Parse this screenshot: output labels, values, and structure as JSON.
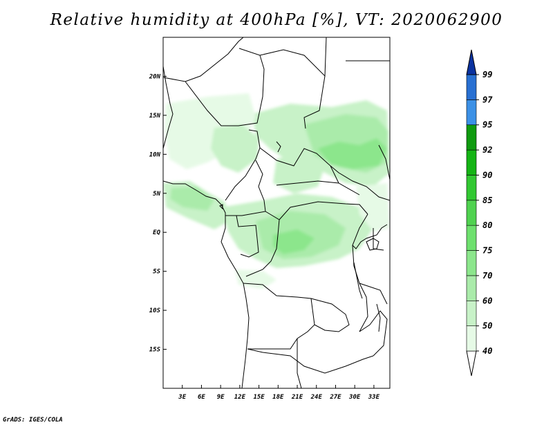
{
  "title": "Relative humidity at 400hPa [%], VT: 2020062900",
  "footer": "GrADS: IGES/COLA",
  "map": {
    "lon_range": [
      0,
      35.5
    ],
    "lat_range": [
      -20,
      25
    ],
    "lon_ticks": [
      {
        "value": 3,
        "label": "3E"
      },
      {
        "value": 6,
        "label": "6E"
      },
      {
        "value": 9,
        "label": "9E"
      },
      {
        "value": 12,
        "label": "12E"
      },
      {
        "value": 15,
        "label": "15E"
      },
      {
        "value": 18,
        "label": "18E"
      },
      {
        "value": 21,
        "label": "21E"
      },
      {
        "value": 24,
        "label": "24E"
      },
      {
        "value": 27,
        "label": "27E"
      },
      {
        "value": 30,
        "label": "30E"
      },
      {
        "value": 33,
        "label": "33E"
      }
    ],
    "lat_ticks": [
      {
        "value": 20,
        "label": "20N"
      },
      {
        "value": 15,
        "label": "15N"
      },
      {
        "value": 10,
        "label": "10N"
      },
      {
        "value": 5,
        "label": "5N"
      },
      {
        "value": 0,
        "label": "EQ"
      },
      {
        "value": -5,
        "label": "5S"
      },
      {
        "value": -10,
        "label": "10S"
      },
      {
        "value": -15,
        "label": "15S"
      }
    ]
  },
  "colorbar": {
    "levels": [
      "40",
      "50",
      "60",
      "70",
      "75",
      "80",
      "85",
      "90",
      "92",
      "95",
      "97",
      "99"
    ],
    "colors": [
      "#e6fae6",
      "#c8f2c8",
      "#aaebaa",
      "#8ce68c",
      "#6ee06e",
      "#50d250",
      "#32c832",
      "#14b414",
      "#0f9b0f",
      "#3c91e6",
      "#2870d2",
      "#1450be",
      "#0a32a0"
    ]
  }
}
